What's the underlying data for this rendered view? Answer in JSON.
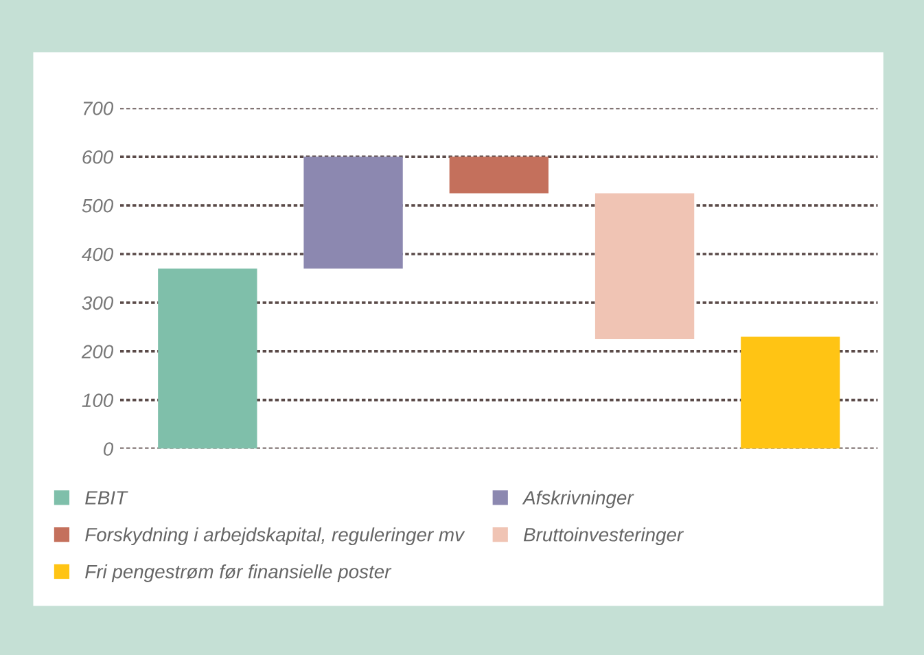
{
  "chart_data": {
    "type": "bar",
    "categories": [
      null,
      null,
      null,
      null,
      null
    ],
    "series": [
      {
        "name": "EBIT",
        "color": "#7fbfaa",
        "values": [
          370,
          null,
          null,
          null,
          null
        ],
        "base": [
          0,
          null,
          null,
          null,
          null
        ]
      },
      {
        "name": "Afskrivninger",
        "color": "#8c88b0",
        "values": [
          null,
          230,
          null,
          null,
          null
        ],
        "base": [
          null,
          370,
          null,
          null,
          null
        ]
      },
      {
        "name": "Forskydning i arbejdskapital, reguleringer mv",
        "color": "#c4705c",
        "values": [
          null,
          null,
          -75,
          null,
          null
        ],
        "base": [
          null,
          null,
          600,
          null,
          null
        ]
      },
      {
        "name": "Bruttoinvesteringer",
        "color": "#f0c4b4",
        "values": [
          null,
          null,
          null,
          -300,
          null
        ],
        "base": [
          null,
          null,
          null,
          525,
          null
        ]
      },
      {
        "name": "Fri pengestrøm før finansielle poster",
        "color": "#ffc414",
        "values": [
          null,
          null,
          null,
          null,
          230
        ],
        "base": [
          null,
          null,
          null,
          null,
          0
        ]
      }
    ],
    "ylim": [
      0,
      700
    ],
    "yticks": [
      0,
      100,
      200,
      300,
      400,
      500,
      600,
      700
    ],
    "grid": "y",
    "legend": "bottom"
  }
}
